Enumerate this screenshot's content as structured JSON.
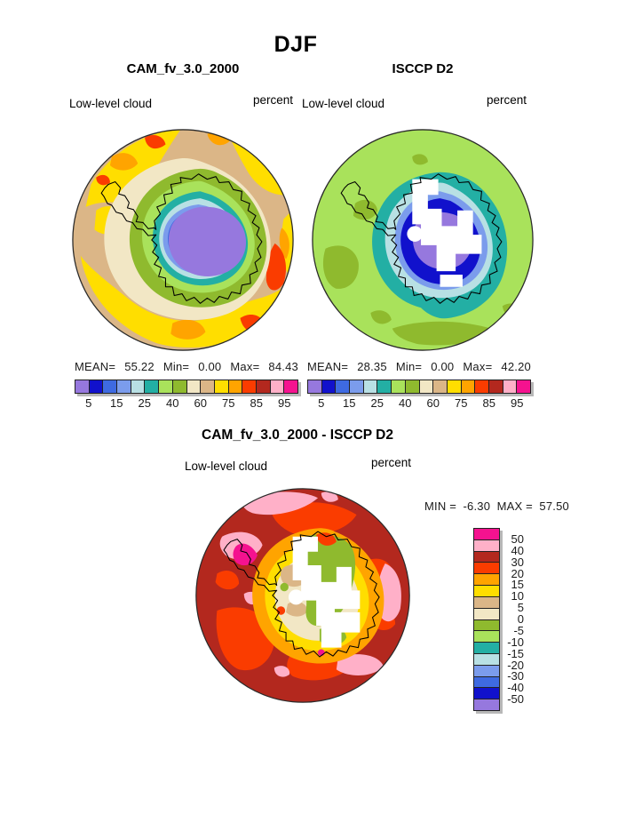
{
  "figure_title": "DJF",
  "palette": {
    "named": {
      "purple": "#9678DE",
      "darkblue": "#1111CC",
      "royalblue": "#3E6AE1",
      "cornflower": "#7B9CEC",
      "palecyan": "#B8E0E4",
      "teal": "#23AFA4",
      "lightgreen": "#A9E25B",
      "olive": "#8FBA2E",
      "cream": "#F2E7C5",
      "tan": "#DBB687",
      "yellow": "#FFDE00",
      "orange": "#FFA400",
      "orangered": "#FA3C00",
      "brickred": "#B3281E",
      "pink": "#FFB0C8",
      "magenta": "#F5128F"
    },
    "scale_low_to_high": [
      "purple",
      "darkblue",
      "royalblue",
      "cornflower",
      "palecyan",
      "teal",
      "lightgreen",
      "olive",
      "cream",
      "tan",
      "yellow",
      "orange",
      "orangered",
      "brickred",
      "pink",
      "magenta"
    ],
    "diff_scale_top_to_bottom": [
      "magenta",
      "pink",
      "brickred",
      "orangered",
      "orange",
      "yellow",
      "tan",
      "cream",
      "olive",
      "lightgreen",
      "teal",
      "palecyan",
      "cornflower",
      "royalblue",
      "darkblue",
      "purple"
    ]
  },
  "panels": {
    "cam": {
      "title": "CAM_fv_3.0_2000",
      "field": "Low-level cloud",
      "units": "percent",
      "stats": {
        "mean_label": "MEAN=",
        "mean": "55.22",
        "min_label": "Min=",
        "min": "0.00",
        "max_label": "Max=",
        "max": "84.43"
      },
      "ticks": [
        "5",
        "15",
        "25",
        "40",
        "60",
        "75",
        "85",
        "95"
      ]
    },
    "isccp": {
      "title": "ISCCP D2",
      "field": "Low-level cloud",
      "units": "percent",
      "stats": {
        "mean_label": "MEAN=",
        "mean": "28.35",
        "min_label": "Min=",
        "min": "0.00",
        "max_label": "Max=",
        "max": "42.20"
      },
      "ticks": [
        "5",
        "15",
        "25",
        "40",
        "60",
        "75",
        "85",
        "95"
      ]
    },
    "diff": {
      "title": "CAM_fv_3.0_2000 - ISCCP D2",
      "field": "Low-level cloud",
      "units": "percent",
      "stats": {
        "min_label": "MIN =",
        "min": "-6.30",
        "max_label": "MAX =",
        "max": "57.50"
      },
      "ticks": [
        "50",
        "40",
        "30",
        "20",
        "15",
        "10",
        "5",
        "0",
        "-5",
        "-10",
        "-15",
        "-20",
        "-30",
        "-40",
        "-50"
      ]
    }
  },
  "chart_data": [
    {
      "type": "heatmap",
      "subtype": "polar-stereographic-filled-contour-map",
      "region": "Antarctica / Southern Hemisphere",
      "season": "DJF",
      "title": "CAM_fv_3.0_2000",
      "variable": "Low-level cloud",
      "units": "percent",
      "mean": 55.22,
      "min": 0.0,
      "max": 84.43,
      "contour_levels": [
        5,
        10,
        15,
        20,
        25,
        30,
        40,
        50,
        60,
        70,
        75,
        80,
        85,
        90,
        95
      ],
      "labeled_levels": [
        5,
        15,
        25,
        40,
        60,
        75,
        85,
        95
      ],
      "legend_position": "below"
    },
    {
      "type": "heatmap",
      "subtype": "polar-stereographic-filled-contour-map",
      "region": "Antarctica / Southern Hemisphere",
      "season": "DJF",
      "title": "ISCCP D2",
      "variable": "Low-level cloud",
      "units": "percent",
      "mean": 28.35,
      "min": 0.0,
      "max": 42.2,
      "contour_levels": [
        5,
        10,
        15,
        20,
        25,
        30,
        40,
        50,
        60,
        70,
        75,
        80,
        85,
        90,
        95
      ],
      "labeled_levels": [
        5,
        15,
        25,
        40,
        60,
        75,
        85,
        95
      ],
      "missing_data": "white sectors over interior Antarctica",
      "legend_position": "below"
    },
    {
      "type": "heatmap",
      "subtype": "polar-stereographic-filled-contour-difference-map",
      "region": "Antarctica / Southern Hemisphere",
      "season": "DJF",
      "title": "CAM_fv_3.0_2000 - ISCCP D2",
      "variable": "Low-level cloud",
      "units": "percent",
      "min": -6.3,
      "max": 57.5,
      "contour_levels": [
        -50,
        -40,
        -30,
        -20,
        -15,
        -10,
        -5,
        0,
        5,
        10,
        15,
        20,
        30,
        40,
        50
      ],
      "legend_position": "right-vertical"
    }
  ]
}
